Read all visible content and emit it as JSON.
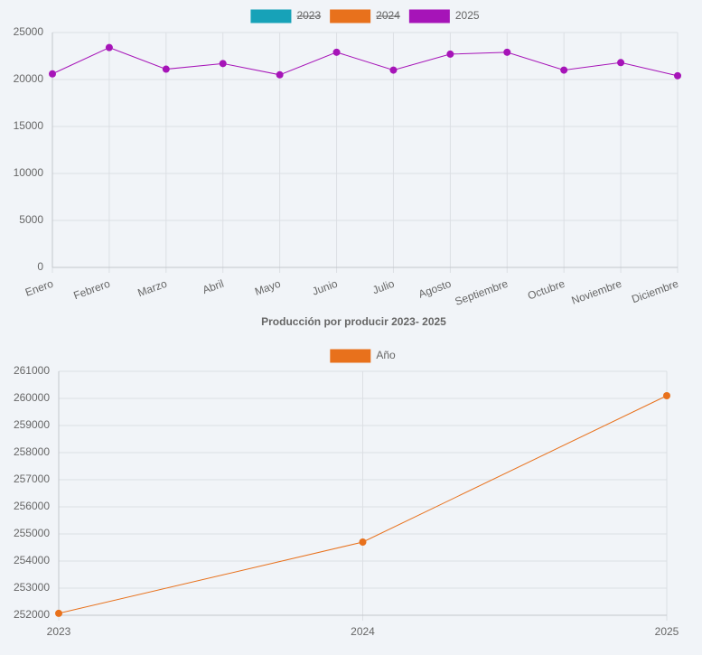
{
  "chart_data": [
    {
      "type": "line",
      "categories": [
        "Enero",
        "Febrero",
        "Marzo",
        "Abril",
        "Mayo",
        "Junio",
        "Julio",
        "Agosto",
        "Septiembre",
        "Octubre",
        "Noviembre",
        "Diciembre"
      ],
      "series": [
        {
          "name": "2023",
          "color": "#17a2b8",
          "hidden": true,
          "values": [
            null,
            null,
            null,
            null,
            null,
            null,
            null,
            null,
            null,
            null,
            null,
            null
          ]
        },
        {
          "name": "2024",
          "color": "#e8711c",
          "hidden": true,
          "values": [
            null,
            null,
            null,
            null,
            null,
            null,
            null,
            null,
            null,
            null,
            null,
            null
          ]
        },
        {
          "name": "2025",
          "color": "#a614b8",
          "hidden": false,
          "values": [
            20600,
            23400,
            21100,
            21700,
            20500,
            22900,
            21000,
            22700,
            22900,
            21000,
            21800,
            20400
          ]
        }
      ],
      "ylim": [
        0,
        25000
      ],
      "yticks": [
        0,
        5000,
        10000,
        15000,
        20000,
        25000
      ],
      "grid": true,
      "legend": "top"
    },
    {
      "type": "line",
      "title": "Producción por producir 2023- 2025",
      "categories": [
        "2023",
        "2024",
        "2025"
      ],
      "series": [
        {
          "name": "Año",
          "color": "#e8711c",
          "hidden": false,
          "values": [
            252070,
            254700,
            260100
          ]
        }
      ],
      "ylim": [
        252000,
        261000
      ],
      "yticks": [
        252000,
        253000,
        254000,
        255000,
        256000,
        257000,
        258000,
        259000,
        260000,
        261000
      ],
      "grid": true,
      "legend": "top"
    }
  ]
}
